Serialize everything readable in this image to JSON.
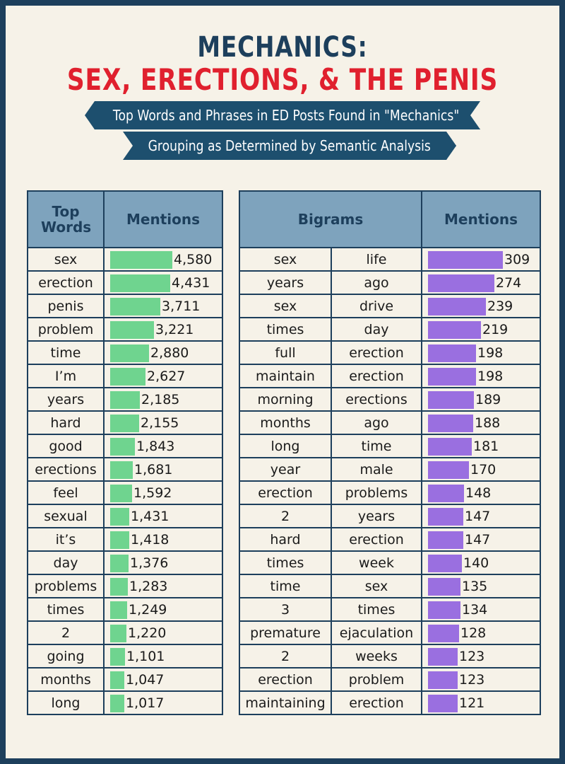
{
  "header": {
    "title_line1": "MECHANICS:",
    "title_line2": "SEX, ERECTIONS, & THE PENIS",
    "subtitle_line1": "Top Words and Phrases in ED Posts Found in \"Mechanics\"",
    "subtitle_line2": "Grouping as Determined by Semantic Analysis"
  },
  "colors": {
    "navy": "#1d3f5c",
    "red": "#e0202e",
    "green_bar": "#6fd48f",
    "purple_bar": "#9a6fe0",
    "header_blue": "#7ea3bd"
  },
  "chart_data": [
    {
      "type": "bar",
      "orientation": "horizontal",
      "column_headers": [
        "Top Words",
        "Mentions"
      ],
      "categories": [
        "sex",
        "erection",
        "penis",
        "problem",
        "time",
        "I’m",
        "years",
        "hard",
        "good",
        "erections",
        "feel",
        "sexual",
        "it’s",
        "day",
        "problems",
        "times",
        "2",
        "going",
        "months",
        "long"
      ],
      "values": [
        4580,
        4431,
        3711,
        3221,
        2880,
        2627,
        2185,
        2155,
        1843,
        1681,
        1592,
        1431,
        1418,
        1376,
        1283,
        1249,
        1220,
        1101,
        1047,
        1017
      ],
      "value_labels": [
        "4,580",
        "4,431",
        "3,711",
        "3,221",
        "2,880",
        "2,627",
        "2,185",
        "2,155",
        "1,843",
        "1,681",
        "1,592",
        "1,431",
        "1,418",
        "1,376",
        "1,283",
        "1,249",
        "1,220",
        "1,101",
        "1,047",
        "1,017"
      ],
      "xlim": [
        0,
        4580
      ]
    },
    {
      "type": "bar",
      "orientation": "horizontal",
      "column_headers": [
        "Bigrams",
        "Mentions"
      ],
      "categories": [
        [
          "sex",
          "life"
        ],
        [
          "years",
          "ago"
        ],
        [
          "sex",
          "drive"
        ],
        [
          "times",
          "day"
        ],
        [
          "full",
          "erection"
        ],
        [
          "maintain",
          "erection"
        ],
        [
          "morning",
          "erections"
        ],
        [
          "months",
          "ago"
        ],
        [
          "long",
          "time"
        ],
        [
          "year",
          "male"
        ],
        [
          "erection",
          "problems"
        ],
        [
          "2",
          "years"
        ],
        [
          "hard",
          "erection"
        ],
        [
          "times",
          "week"
        ],
        [
          "time",
          "sex"
        ],
        [
          "3",
          "times"
        ],
        [
          "premature",
          "ejaculation"
        ],
        [
          "2",
          "weeks"
        ],
        [
          "erection",
          "problem"
        ],
        [
          "maintaining",
          "erection"
        ]
      ],
      "values": [
        309,
        274,
        239,
        219,
        198,
        198,
        189,
        188,
        181,
        170,
        148,
        147,
        147,
        140,
        135,
        134,
        128,
        123,
        123,
        121
      ],
      "xlim": [
        0,
        309
      ]
    }
  ]
}
